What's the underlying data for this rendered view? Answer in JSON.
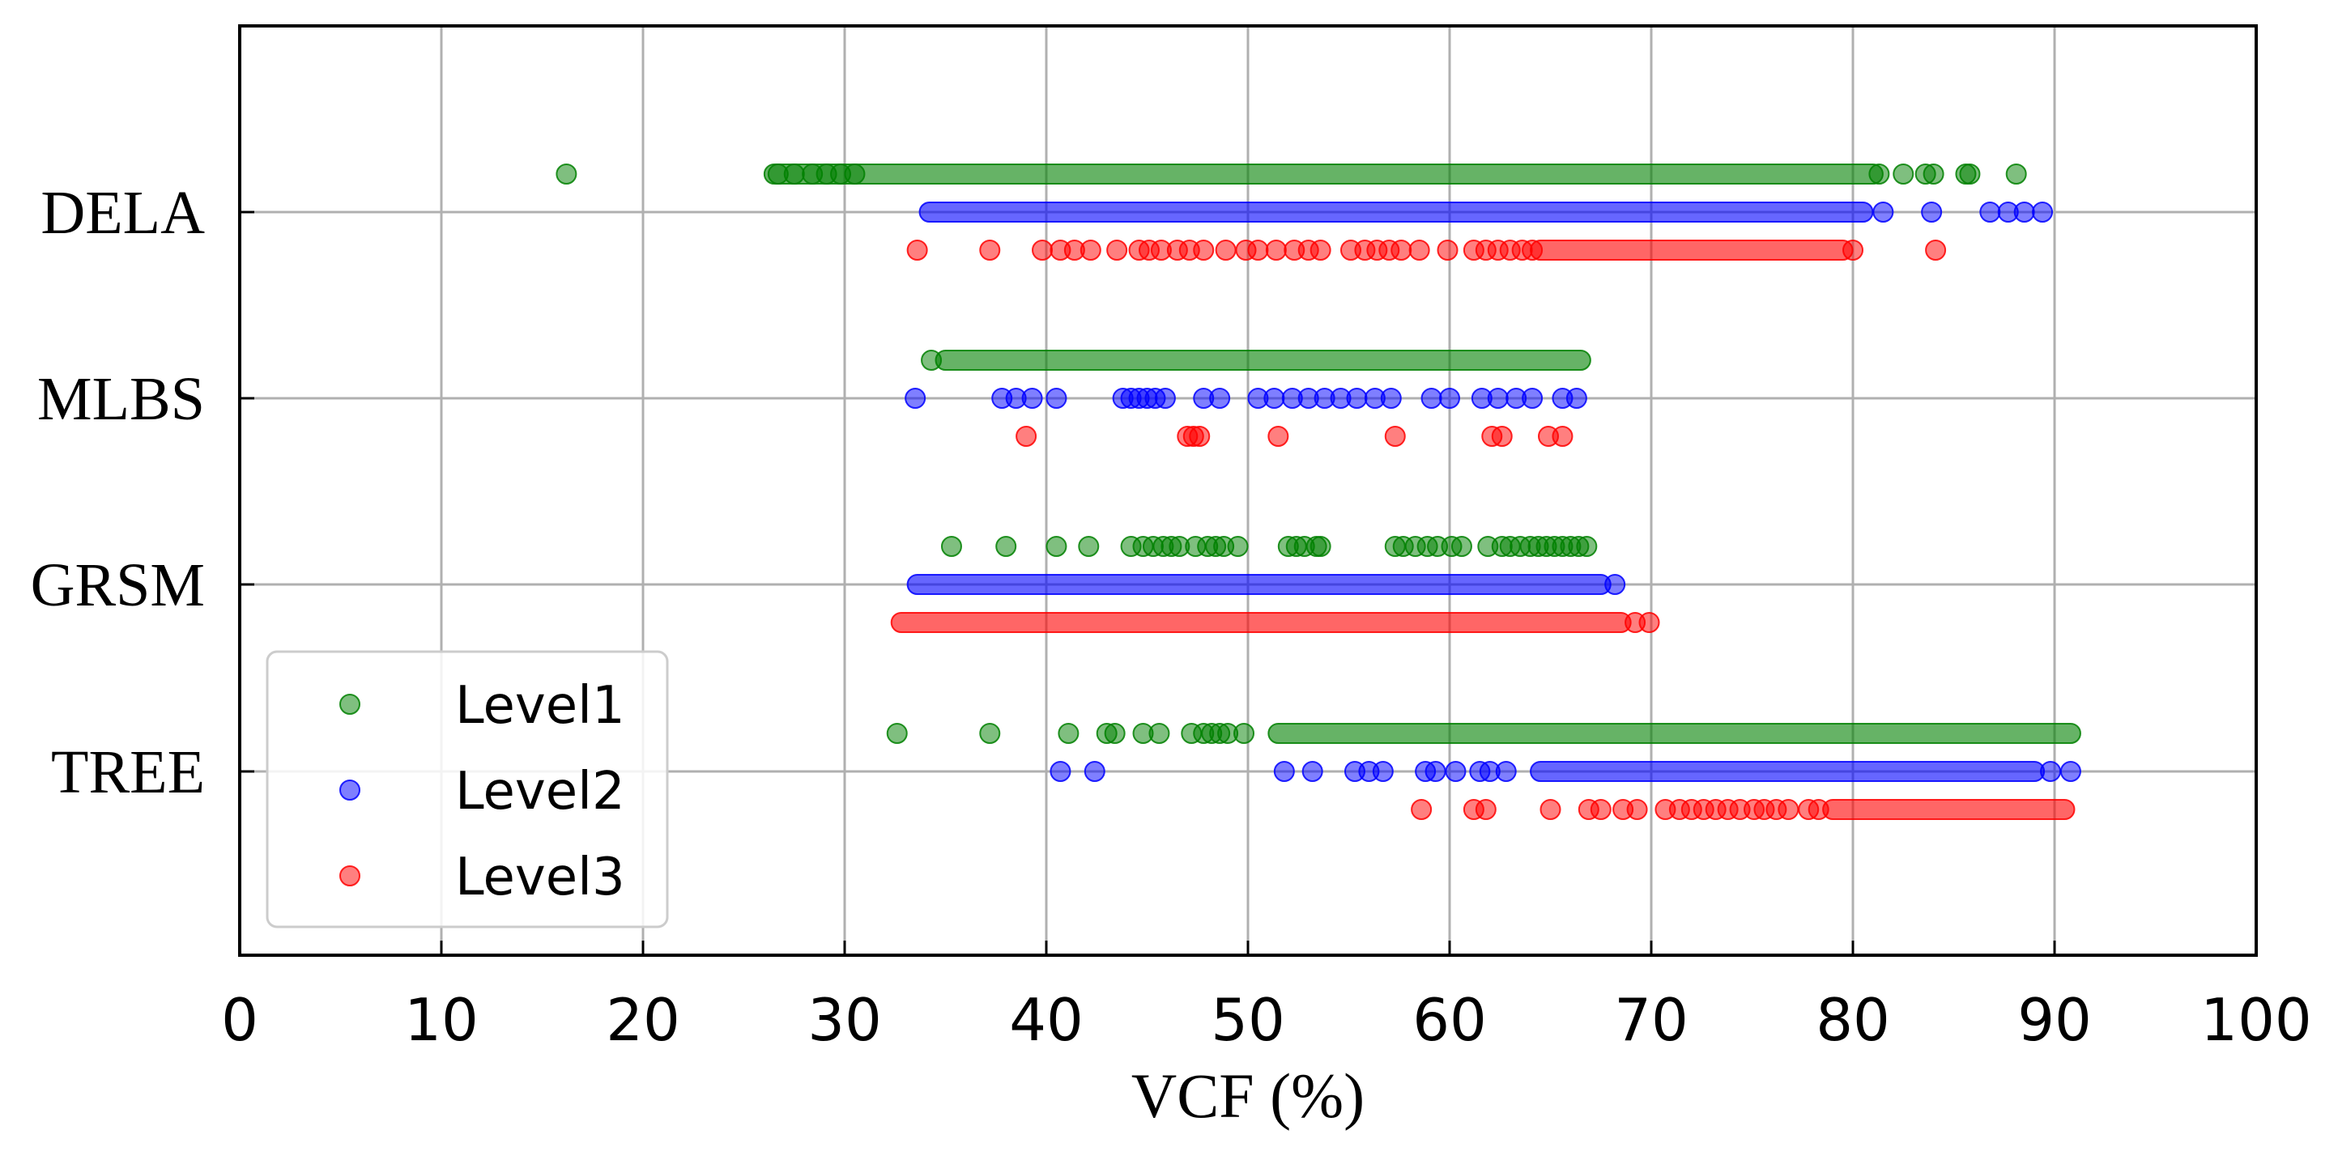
{
  "chart_data": {
    "type": "scatter",
    "title": "",
    "xlabel": "VCF (%)",
    "ylabel": "",
    "xlim": [
      0,
      100
    ],
    "x_ticks": [
      "0",
      "10",
      "20",
      "30",
      "40",
      "50",
      "60",
      "70",
      "80",
      "90",
      "100"
    ],
    "categories": [
      "DELA",
      "MLBS",
      "GRSM",
      "TREE"
    ],
    "grid": true,
    "legend_position": "bottom-left",
    "series": [
      {
        "name": "Level1",
        "color": "#008000",
        "segments": {
          "DELA": [
            [
              26.5,
              81.0
            ]
          ],
          "MLBS": [
            [
              35.0,
              66.5
            ]
          ],
          "GRSM": [],
          "TREE": [
            [
              51.5,
              90.8
            ]
          ]
        },
        "points": {
          "DELA": [
            16.2,
            26.7,
            27.5,
            28.4,
            29.1,
            29.8,
            30.5,
            81.3,
            82.5,
            83.6,
            84.0,
            85.6,
            85.8,
            88.1
          ],
          "MLBS": [
            34.3
          ],
          "GRSM": [
            35.3,
            38.0,
            40.5,
            42.1,
            44.2,
            44.8,
            45.3,
            45.8,
            46.2,
            46.6,
            47.4,
            48.0,
            48.4,
            48.8,
            49.5,
            52.0,
            52.4,
            52.8,
            53.4,
            53.6,
            57.3,
            57.7,
            58.3,
            58.9,
            59.4,
            60.1,
            60.6,
            61.9,
            62.6,
            63.0,
            63.5,
            64.0,
            64.4,
            64.8,
            65.2,
            65.6,
            66.0,
            66.4,
            66.8
          ],
          "TREE": [
            32.6,
            37.2,
            41.1,
            43.0,
            43.4,
            44.8,
            45.6,
            47.2,
            47.8,
            48.2,
            48.6,
            49.0,
            49.8
          ]
        }
      },
      {
        "name": "Level2",
        "color": "#0000ff",
        "segments": {
          "DELA": [
            [
              34.2,
              80.5
            ]
          ],
          "MLBS": [],
          "GRSM": [
            [
              33.6,
              67.5
            ]
          ],
          "TREE": [
            [
              64.5,
              89.0
            ]
          ]
        },
        "points": {
          "DELA": [
            81.5,
            83.9,
            86.8,
            87.7,
            88.5,
            89.4
          ],
          "MLBS": [
            33.5,
            37.8,
            38.5,
            39.3,
            40.5,
            43.8,
            44.2,
            44.6,
            45.0,
            45.4,
            45.9,
            47.8,
            48.6,
            50.5,
            51.3,
            52.2,
            53.0,
            53.8,
            54.6,
            55.4,
            56.3,
            57.1,
            59.1,
            60.0,
            61.6,
            62.4,
            63.3,
            64.1,
            65.6,
            66.3
          ],
          "GRSM": [
            68.2
          ],
          "TREE": [
            40.7,
            42.4,
            51.8,
            53.2,
            55.3,
            56.0,
            56.7,
            58.8,
            59.3,
            60.3,
            61.5,
            62.0,
            62.8,
            89.8,
            90.8
          ]
        }
      },
      {
        "name": "Level3",
        "color": "#ff0000",
        "segments": {
          "DELA": [
            [
              64.5,
              79.5
            ]
          ],
          "MLBS": [],
          "GRSM": [
            [
              32.8,
              68.5
            ]
          ],
          "TREE": [
            [
              79.0,
              90.5
            ]
          ]
        },
        "points": {
          "DELA": [
            33.6,
            37.2,
            39.8,
            40.7,
            41.4,
            42.2,
            43.5,
            44.6,
            45.1,
            45.7,
            46.5,
            47.1,
            47.8,
            48.9,
            49.9,
            50.5,
            51.4,
            52.3,
            53.0,
            53.6,
            55.1,
            55.8,
            56.4,
            57.0,
            57.6,
            58.5,
            59.9,
            61.2,
            61.8,
            62.4,
            63.0,
            63.6,
            64.1,
            80.0,
            84.1
          ],
          "MLBS": [
            39.0,
            47.0,
            47.3,
            47.6,
            51.5,
            57.3,
            62.1,
            62.6,
            64.9,
            65.6
          ],
          "GRSM": [
            69.2,
            69.9
          ],
          "TREE": [
            58.6,
            61.2,
            61.8,
            65.0,
            66.9,
            67.5,
            68.6,
            69.3,
            70.7,
            71.4,
            72.0,
            72.6,
            73.2,
            73.8,
            74.4,
            75.1,
            75.6,
            76.2,
            76.8,
            77.8,
            78.3
          ]
        }
      }
    ]
  }
}
